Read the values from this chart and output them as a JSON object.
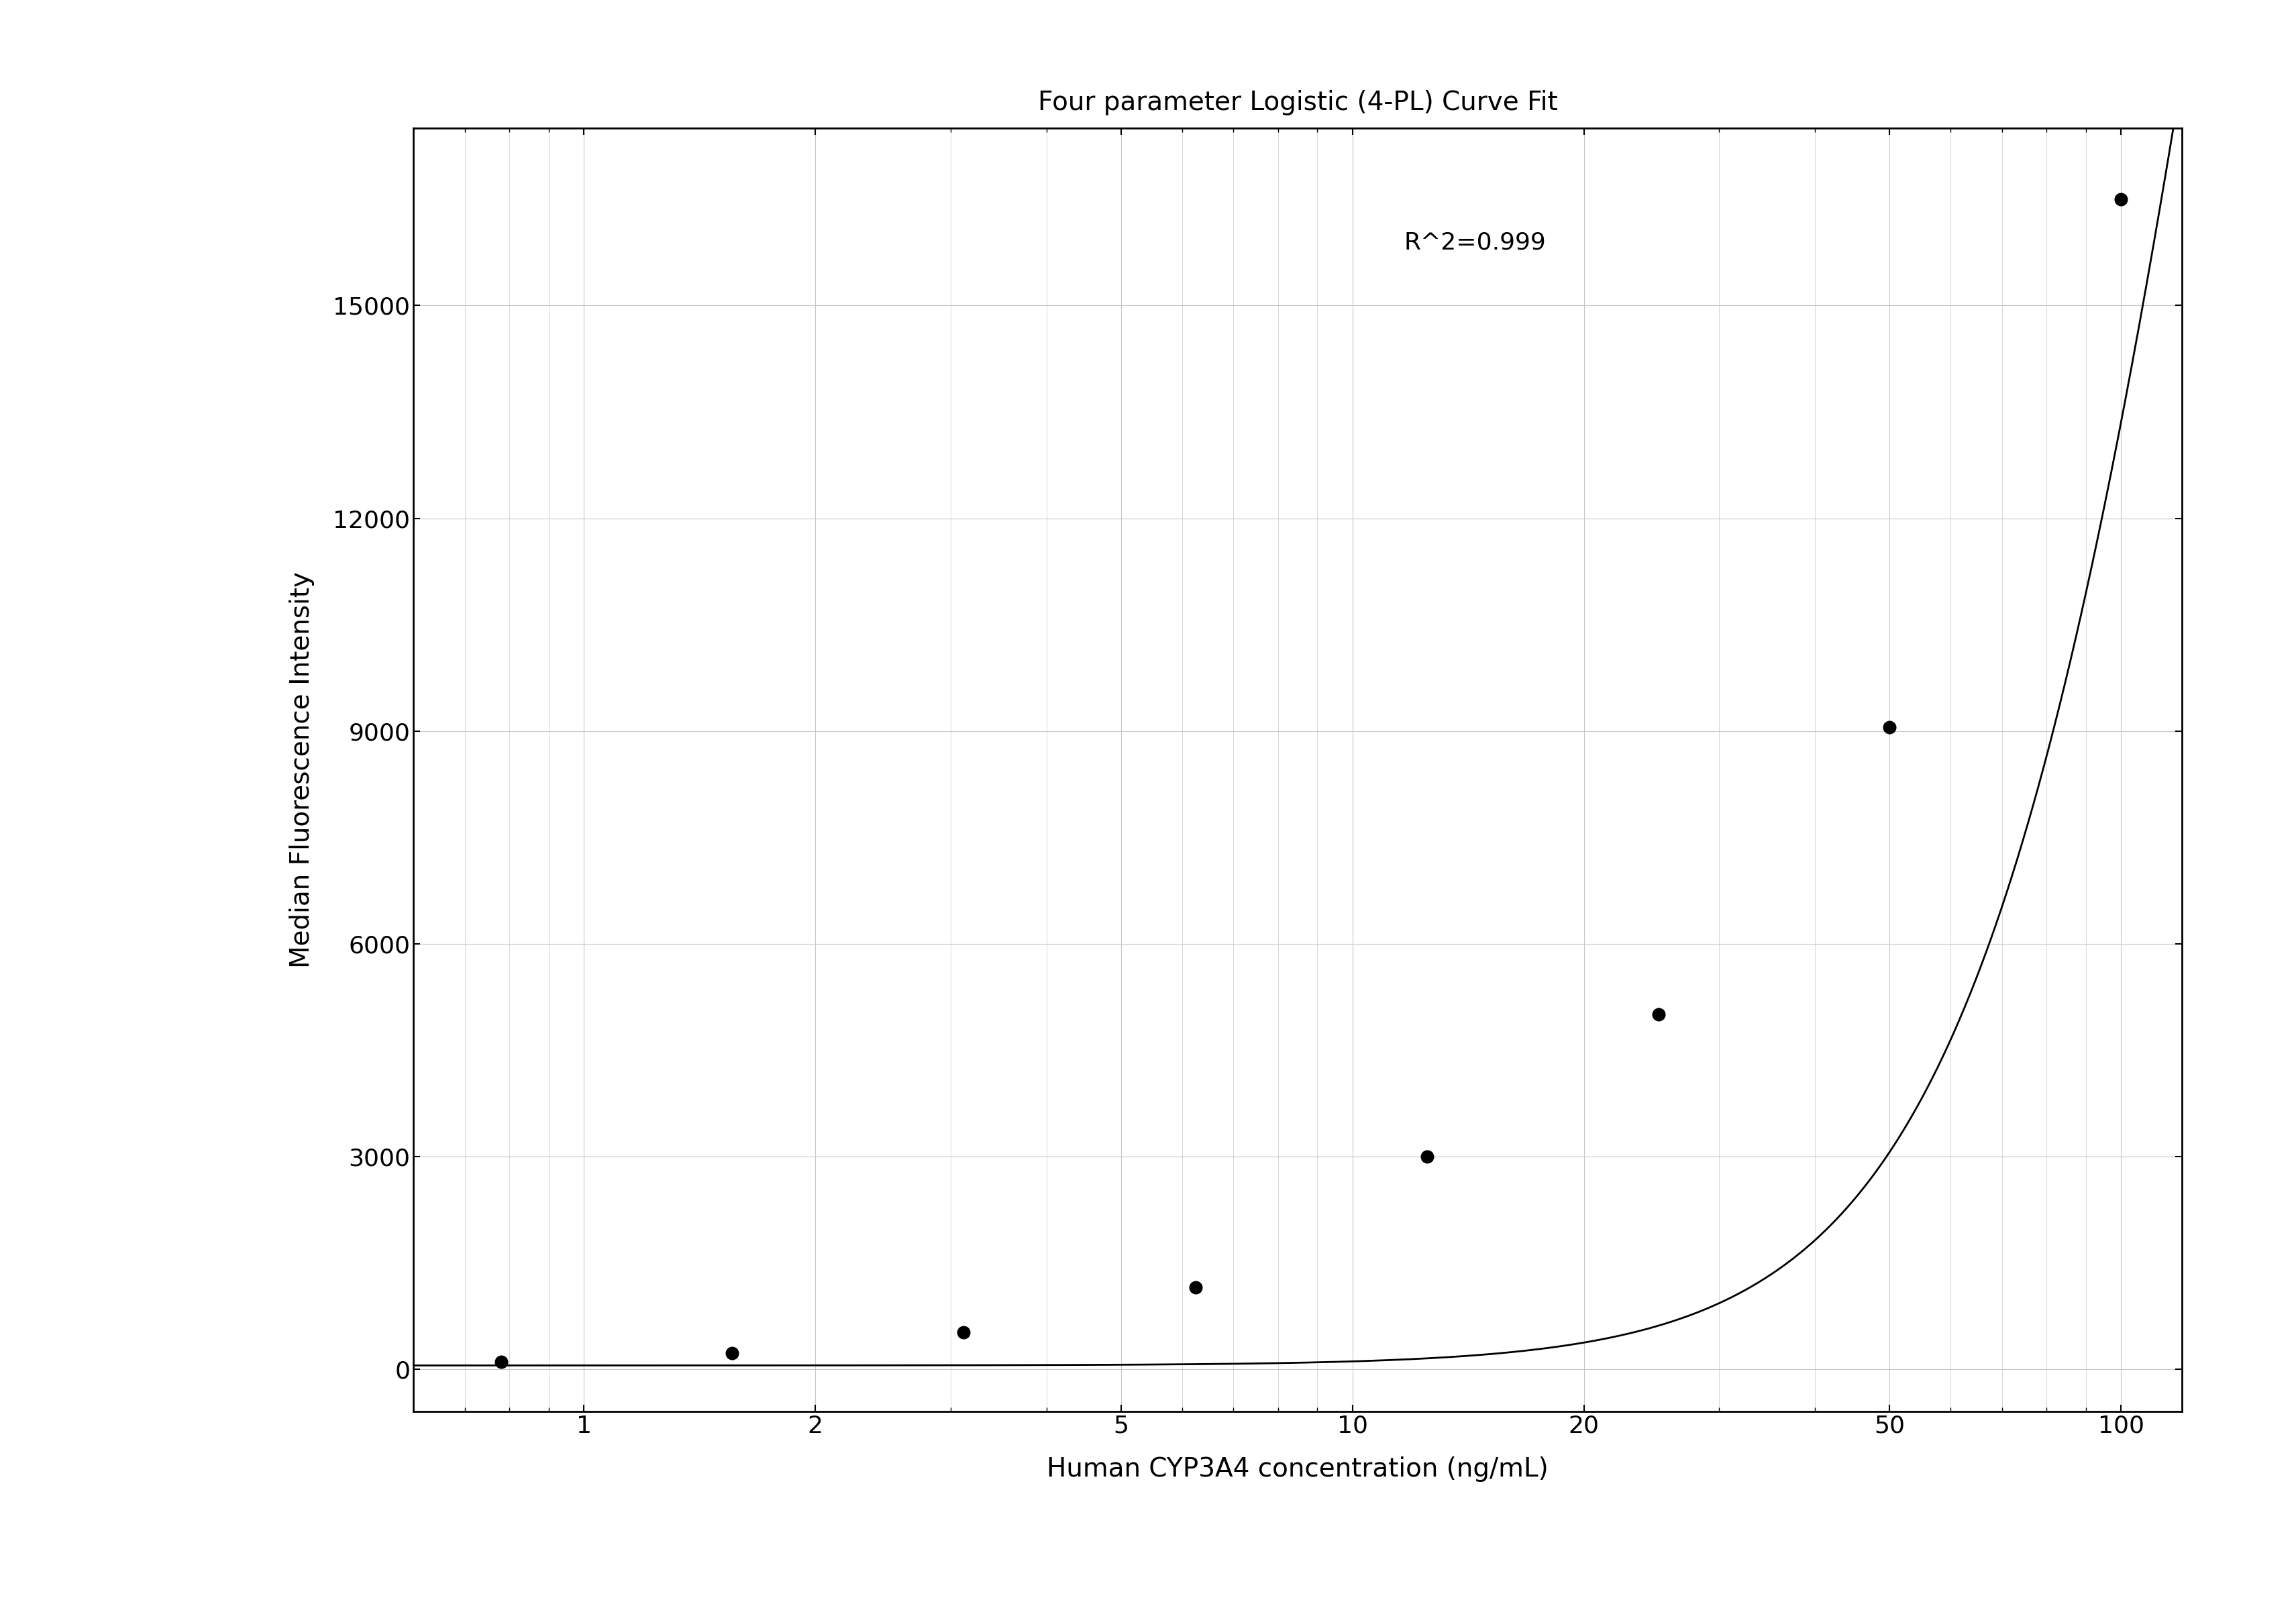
{
  "title": "Four parameter Logistic (4-PL) Curve Fit",
  "xlabel": "Human CYP3A4 concentration (ng/mL)",
  "ylabel": "Median Fluorescence Intensity",
  "r_squared": "R^2=0.999",
  "data_x": [
    0.78,
    1.56,
    3.12,
    6.25,
    12.5,
    25.0,
    50.0,
    100.0
  ],
  "data_y": [
    100,
    220,
    520,
    1150,
    3000,
    5000,
    9050,
    16500
  ],
  "xmin": 0.6,
  "xmax": 120,
  "ymin": -600,
  "ymax": 17500,
  "yticks": [
    0,
    3000,
    6000,
    9000,
    12000,
    15000
  ],
  "xtick_positions": [
    1,
    2,
    5,
    10,
    20,
    50,
    100
  ],
  "xtick_labels": [
    "1",
    "2",
    "5",
    "10",
    "20",
    "50",
    "100"
  ],
  "grid_color": "#c8c8c8",
  "background_color": "#ffffff",
  "line_color": "#000000",
  "dot_color": "#000000",
  "title_fontsize": 28,
  "label_fontsize": 28,
  "tick_fontsize": 26,
  "annotation_fontsize": 26,
  "dot_size": 180,
  "line_width": 2.0
}
